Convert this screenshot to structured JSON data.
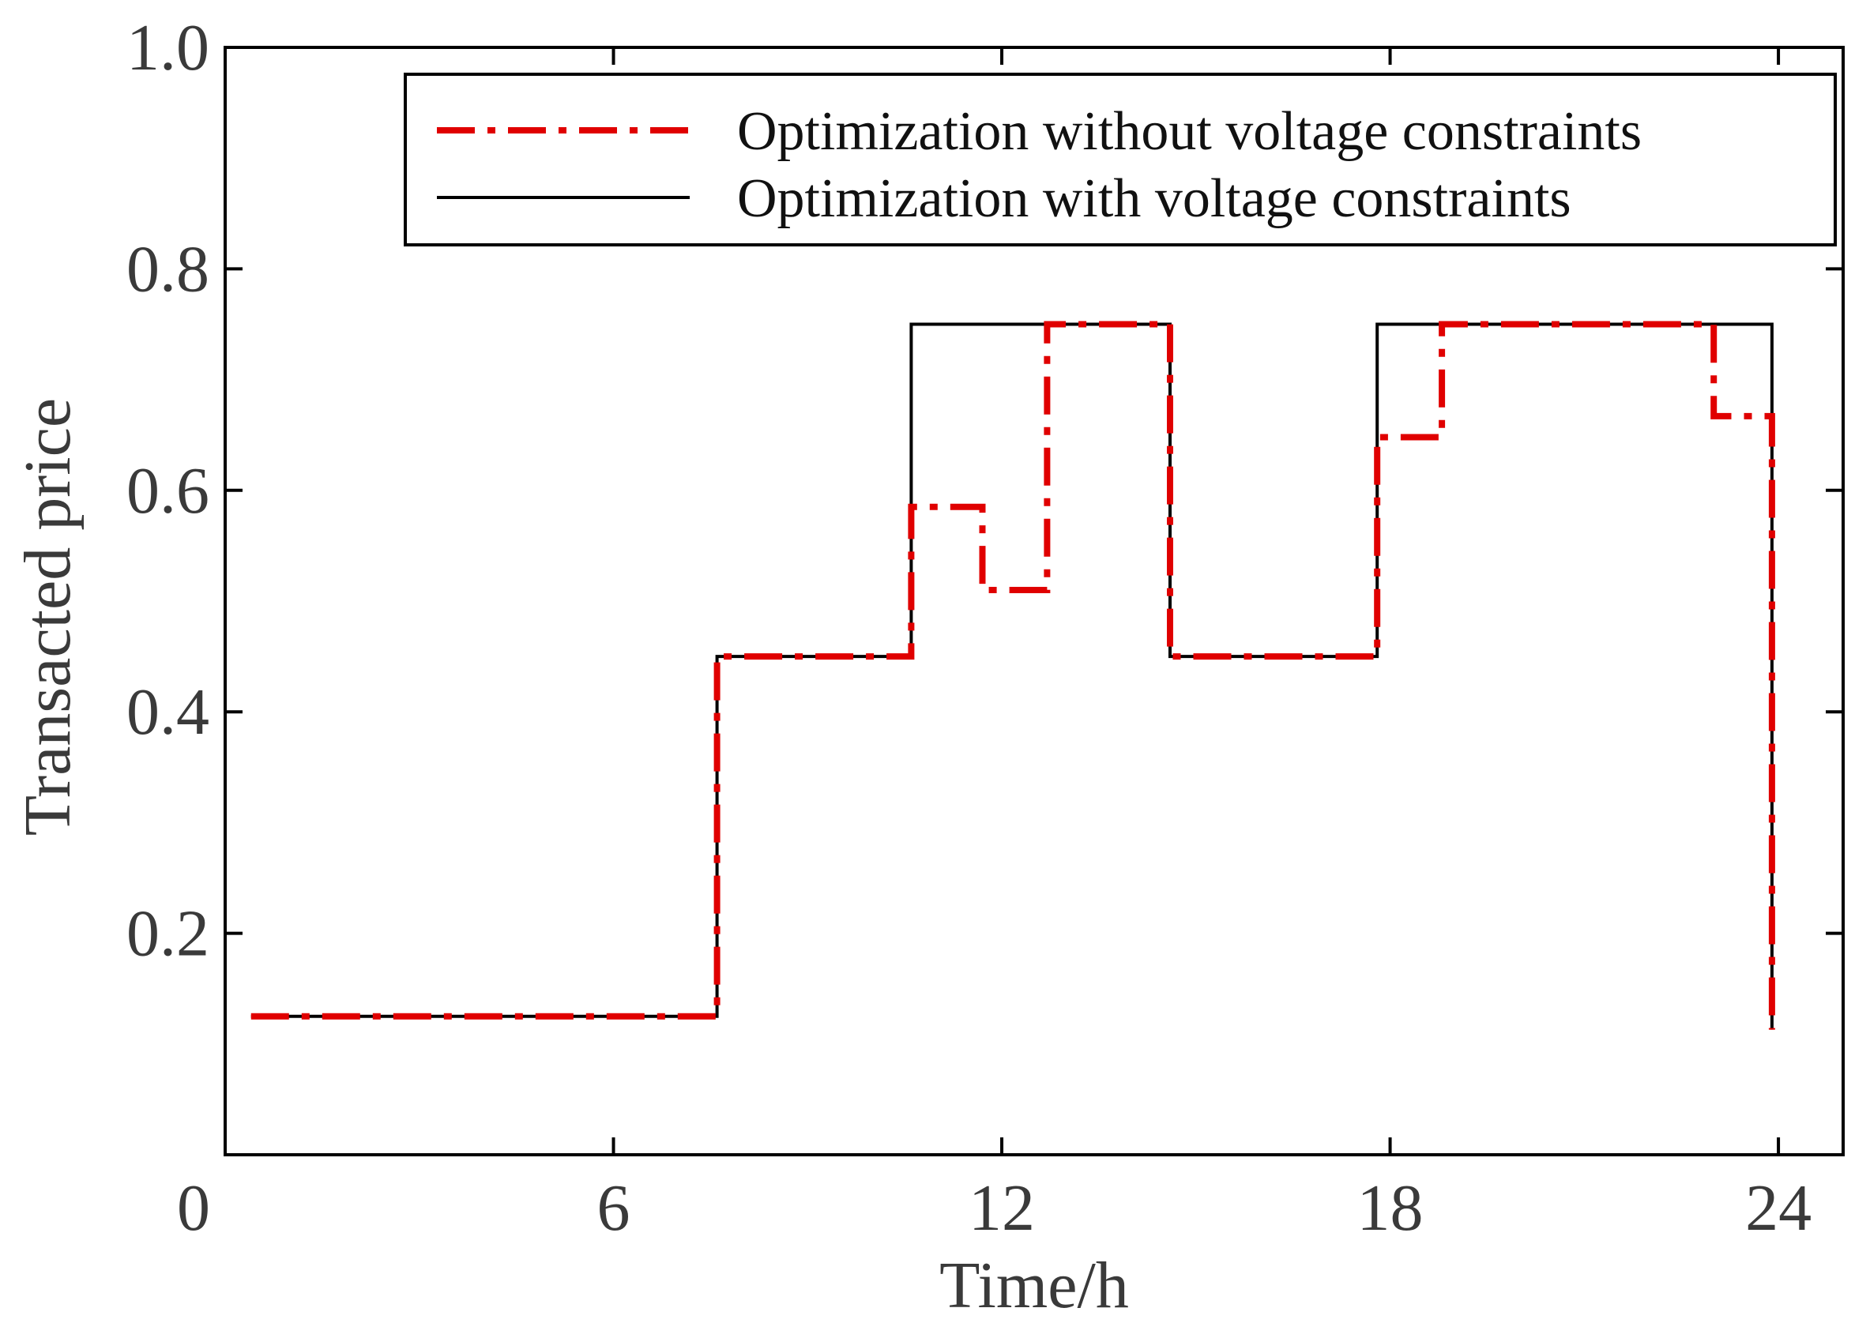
{
  "chart_data": {
    "type": "line",
    "step": "post",
    "title": "",
    "xlabel": "Time/h",
    "ylabel": "Transacted price",
    "xlim": [
      0,
      25
    ],
    "ylim": [
      0,
      1.0
    ],
    "grid": false,
    "legend_position": "top-right",
    "x_ticks": [
      0,
      6,
      12,
      18,
      24
    ],
    "x_tick_labels": [
      "0",
      "6",
      "12",
      "18",
      "24"
    ],
    "y_ticks": [
      0.2,
      0.4,
      0.6,
      0.8,
      1.0
    ],
    "y_tick_labels": [
      "0.2",
      "0.4",
      "0.6",
      "0.8",
      "1.0"
    ],
    "series": [
      {
        "name": "Optimization without voltage constraints",
        "color": "#e00000",
        "style": "dashdot",
        "x": [
          0.4,
          7.6,
          7.6,
          10.6,
          10.6,
          11.7,
          11.7,
          12.7,
          12.7,
          14.6,
          14.6,
          17.8,
          17.8,
          18.8,
          18.8,
          23.0,
          23.0,
          23.9,
          23.9
        ],
        "y": [
          0.125,
          0.125,
          0.45,
          0.45,
          0.585,
          0.585,
          0.51,
          0.51,
          0.75,
          0.75,
          0.45,
          0.45,
          0.648,
          0.648,
          0.75,
          0.75,
          0.667,
          0.667,
          0.113
        ]
      },
      {
        "name": "Optimization with voltage constraints",
        "color": "#000000",
        "style": "solid",
        "x": [
          0.4,
          7.6,
          7.6,
          10.6,
          10.6,
          14.6,
          14.6,
          17.8,
          17.8,
          23.9,
          23.9
        ],
        "y": [
          0.125,
          0.125,
          0.45,
          0.45,
          0.75,
          0.75,
          0.45,
          0.45,
          0.75,
          0.75,
          0.113
        ]
      }
    ]
  }
}
